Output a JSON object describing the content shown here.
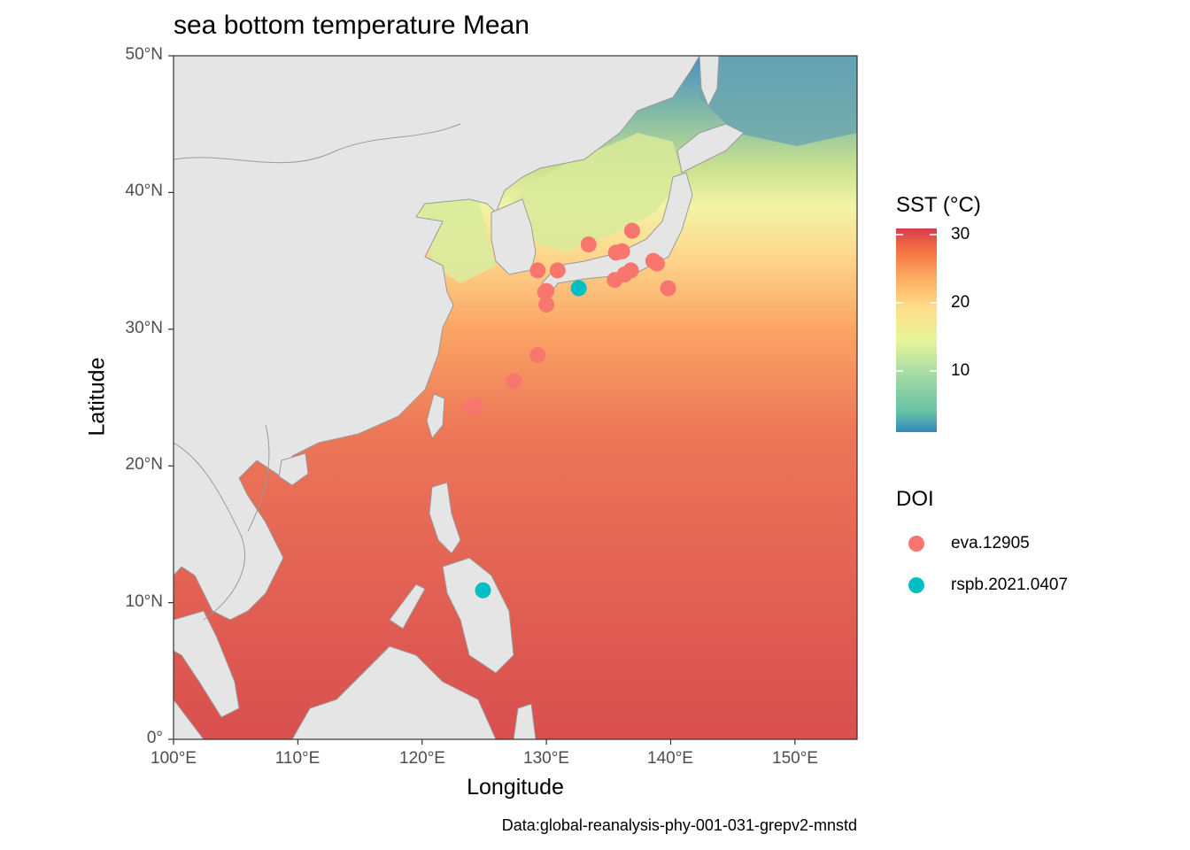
{
  "title": "sea bottom temperature Mean",
  "xlabel": "Longitude",
  "ylabel": "Latitude",
  "caption": "Data:global-reanalysis-phy-001-031-grepv2-mnstd",
  "x_ticks": [
    "100°E",
    "110°E",
    "120°E",
    "130°E",
    "140°E",
    "150°E"
  ],
  "y_ticks": [
    "0°",
    "10°N",
    "20°N",
    "30°N",
    "40°N",
    "50°N"
  ],
  "colors": {
    "land": "#e5e5e5",
    "coast": "#7a7a7a",
    "eva": "#f8766d",
    "rspb": "#00bfc4"
  },
  "legend_sst": {
    "title": "SST (°C)",
    "ticks": [
      "10",
      "20",
      "30"
    ]
  },
  "legend_doi": {
    "title": "DOI",
    "items": [
      {
        "label": "eva.12905",
        "color": "#f8766d"
      },
      {
        "label": "rspb.2021.0407",
        "color": "#00bfc4"
      }
    ]
  },
  "chart_data": {
    "type": "scatter",
    "xlim": [
      100,
      155
    ],
    "ylim": [
      0,
      50
    ],
    "colorbar": {
      "min": 1,
      "max": 30.5
    },
    "series": [
      {
        "name": "eva.12905",
        "points": [
          [
            133.4,
            36.2
          ],
          [
            136.9,
            37.2
          ],
          [
            135.6,
            35.6
          ],
          [
            136.1,
            35.7
          ],
          [
            138.6,
            35.0
          ],
          [
            138.9,
            34.8
          ],
          [
            129.3,
            34.3
          ],
          [
            130.9,
            34.3
          ],
          [
            130.0,
            32.8
          ],
          [
            129.9,
            32.7
          ],
          [
            130.0,
            31.8
          ],
          [
            135.5,
            33.6
          ],
          [
            136.3,
            34.0
          ],
          [
            136.8,
            34.3
          ],
          [
            139.8,
            33.0
          ],
          [
            129.3,
            28.1
          ],
          [
            127.4,
            26.2
          ],
          [
            123.9,
            24.3
          ],
          [
            124.3,
            24.4
          ]
        ]
      },
      {
        "name": "rspb.2021.0407",
        "points": [
          [
            132.6,
            33.0
          ],
          [
            124.9,
            10.9
          ]
        ]
      }
    ]
  }
}
